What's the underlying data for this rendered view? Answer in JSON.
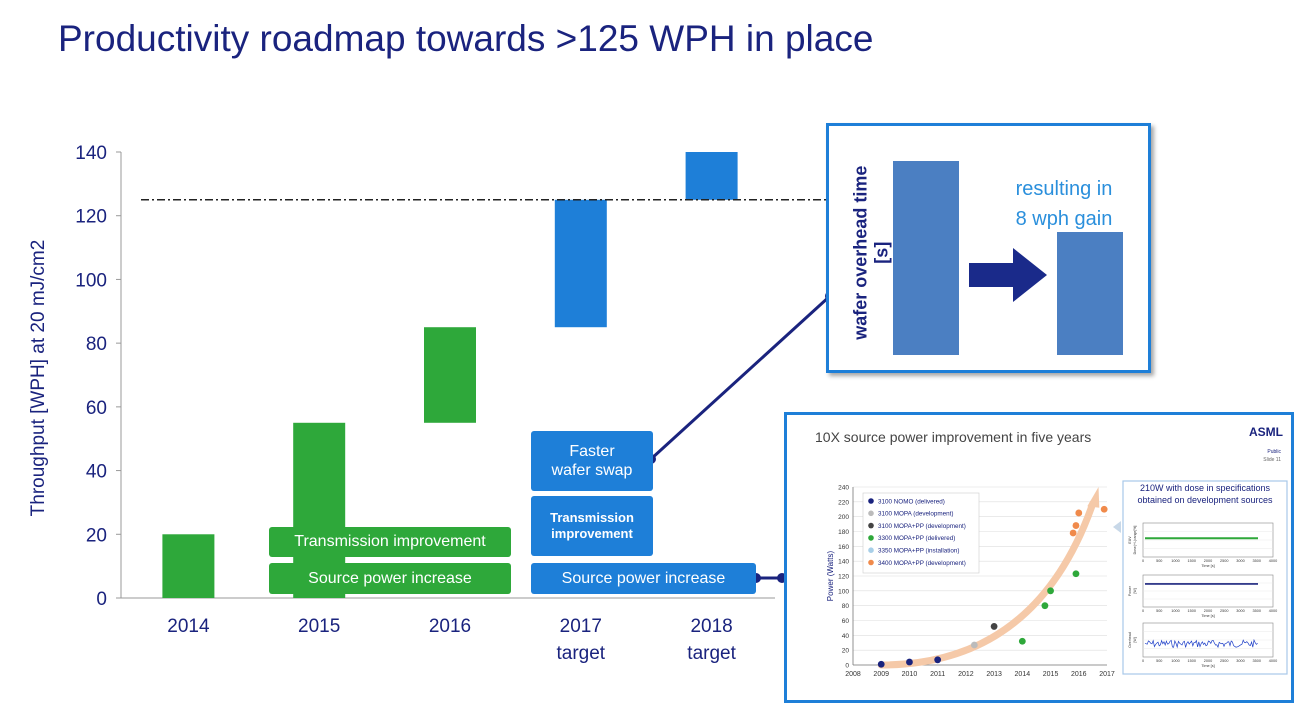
{
  "title": "Productivity roadmap towards >125 WPH in place",
  "chart_data": {
    "type": "bar",
    "ylabel": "Throughput [WPH] at 20 mJ/cm2",
    "ylim": [
      0,
      140
    ],
    "yticks": [
      "0",
      "20",
      "40",
      "60",
      "80",
      "100",
      "120",
      "140"
    ],
    "categories": [
      "2014",
      "2015",
      "2016",
      "2017\ntarget",
      "2018\ntarget"
    ],
    "floating_bars": [
      {
        "category": "2014",
        "low": 0,
        "high": 20,
        "color": "#2ea83a"
      },
      {
        "category": "2015",
        "low": 0,
        "high": 55,
        "color": "#2ea83a"
      },
      {
        "category": "2016",
        "low": 55,
        "high": 85,
        "color": "#2ea83a"
      },
      {
        "category": "2017\ntarget",
        "low": 85,
        "high": 125,
        "color": "#1e7fd8"
      },
      {
        "category": "2018\ntarget",
        "low": 125,
        "high": 140,
        "color": "#1e7fd8"
      }
    ],
    "target_line": 125,
    "annotations": {
      "green_transmission": "Transmission improvement",
      "green_source": "Source power increase",
      "blue_faster": "Faster\nwafer swap",
      "blue_transmission": "Transmission\nimprovement",
      "blue_source": "Source power increase"
    }
  },
  "inset_overhead": {
    "ylabel": "wafer overhead time\n[s]",
    "text": "resulting in\n8 wph gain",
    "bar_colors": "#4b7fc2"
  },
  "inset_source": {
    "title": "10X source power improvement in five years",
    "logo": "ASML",
    "public": "Public",
    "slide": "Slide 11",
    "ylabel": "Power (Watts)",
    "yticks": [
      "0",
      "20",
      "40",
      "60",
      "80",
      "100",
      "120",
      "140",
      "160",
      "180",
      "200",
      "220",
      "240"
    ],
    "xticks": [
      "2008",
      "2009",
      "2010",
      "2011",
      "2012",
      "2013",
      "2014",
      "2015",
      "2016",
      "2017"
    ],
    "legend": [
      {
        "name": "3100 NOMO (delivered)",
        "color": "#1a237e"
      },
      {
        "name": "3100 MOPA (development)",
        "color": "#bbbbbb"
      },
      {
        "name": "3100 MOPA+PP (development)",
        "color": "#444444"
      },
      {
        "name": "3300 MOPA+PP (delivered)",
        "color": "#2ea83a"
      },
      {
        "name": "3350 MOPA+PP (installation)",
        "color": "#a8cfe8"
      },
      {
        "name": "3400 MOPA+PP (development)",
        "color": "#f08a4b"
      }
    ],
    "points": [
      {
        "x": 2009.0,
        "y": 1,
        "c": 0
      },
      {
        "x": 2010.0,
        "y": 4,
        "c": 0
      },
      {
        "x": 2011.0,
        "y": 7,
        "c": 0
      },
      {
        "x": 2012.3,
        "y": 27,
        "c": 1
      },
      {
        "x": 2013.0,
        "y": 52,
        "c": 2
      },
      {
        "x": 2014.0,
        "y": 32,
        "c": 3
      },
      {
        "x": 2014.8,
        "y": 80,
        "c": 3
      },
      {
        "x": 2015.0,
        "y": 100,
        "c": 3
      },
      {
        "x": 2015.9,
        "y": 123,
        "c": 3
      },
      {
        "x": 2015.8,
        "y": 178,
        "c": 5
      },
      {
        "x": 2015.9,
        "y": 188,
        "c": 5
      },
      {
        "x": 2016.0,
        "y": 205,
        "c": 5
      },
      {
        "x": 2016.9,
        "y": 210,
        "c": 5
      }
    ],
    "spec_title": "210W with dose in specifications\nobtained on development sources",
    "mini_charts": [
      {
        "ylabel": "EUV\nDose(+/-)range[%]",
        "xlabel": "Time [s]",
        "xticks": [
          "0",
          "500",
          "1000",
          "1500",
          "2000",
          "2500",
          "3000",
          "3500",
          "4000"
        ]
      },
      {
        "ylabel": "Power\n[W]",
        "xlabel": "Time [s]",
        "xticks": [
          "0",
          "500",
          "1000",
          "1500",
          "2000",
          "2500",
          "3000",
          "3500",
          "4000"
        ]
      },
      {
        "ylabel": "Overhead\n[W]",
        "xlabel": "Time [s]",
        "xticks": [
          "0",
          "500",
          "1000",
          "1500",
          "2000",
          "2500",
          "3000",
          "3500",
          "4000"
        ]
      }
    ]
  }
}
